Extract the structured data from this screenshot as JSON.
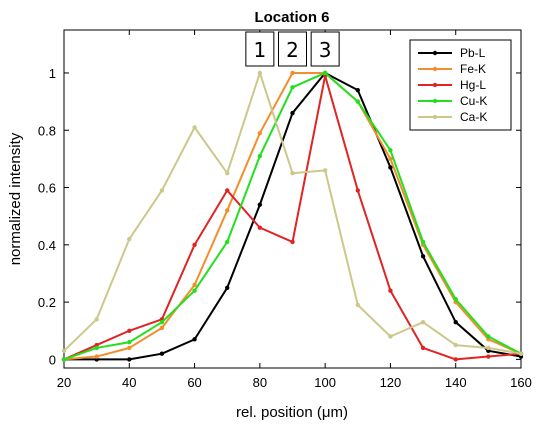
{
  "chart_data": {
    "type": "line",
    "title": "Location 6",
    "xlabel": "rel. position (μm)",
    "ylabel": "normalized intensity",
    "xlim": [
      20,
      160
    ],
    "ylim": [
      -0.03,
      1.15
    ],
    "xticks": [
      "20",
      "40",
      "60",
      "80",
      "100",
      "120",
      "140",
      "160"
    ],
    "yticks": [
      "0",
      "0.2",
      "0.4",
      "0.6",
      "0.8",
      "1"
    ],
    "grid": false,
    "legend_position": "top-right",
    "x": [
      20,
      30,
      40,
      50,
      60,
      70,
      80,
      90,
      100,
      110,
      120,
      130,
      140,
      150,
      160
    ],
    "series": [
      {
        "name": "Pb-L",
        "color": "#000000",
        "values": [
          0.0,
          0.0,
          0.0,
          0.02,
          0.07,
          0.25,
          0.54,
          0.86,
          1.0,
          0.94,
          0.67,
          0.36,
          0.13,
          0.03,
          0.01
        ]
      },
      {
        "name": "Fe-K",
        "color": "#f28e2b",
        "values": [
          0.0,
          0.01,
          0.04,
          0.11,
          0.26,
          0.52,
          0.79,
          1.0,
          1.0,
          0.9,
          0.7,
          0.4,
          0.2,
          0.07,
          0.02
        ]
      },
      {
        "name": "Hg-L",
        "color": "#e02424",
        "values": [
          0.0,
          0.05,
          0.1,
          0.14,
          0.4,
          0.59,
          0.46,
          0.41,
          0.99,
          0.59,
          0.24,
          0.04,
          0.0,
          0.01,
          0.02
        ]
      },
      {
        "name": "Cu-K",
        "color": "#22e01e",
        "values": [
          0.0,
          0.04,
          0.06,
          0.13,
          0.24,
          0.41,
          0.71,
          0.95,
          1.0,
          0.9,
          0.73,
          0.41,
          0.21,
          0.08,
          0.02
        ]
      },
      {
        "name": "Ca-K",
        "color": "#cbc88a",
        "values": [
          0.03,
          0.14,
          0.42,
          0.59,
          0.81,
          0.65,
          1.0,
          0.65,
          0.66,
          0.19,
          0.08,
          0.13,
          0.05,
          0.04,
          0.02
        ]
      }
    ],
    "annotations": [
      {
        "text": "1",
        "x": 80
      },
      {
        "text": "2",
        "x": 90
      },
      {
        "text": "3",
        "x": 100
      }
    ]
  }
}
